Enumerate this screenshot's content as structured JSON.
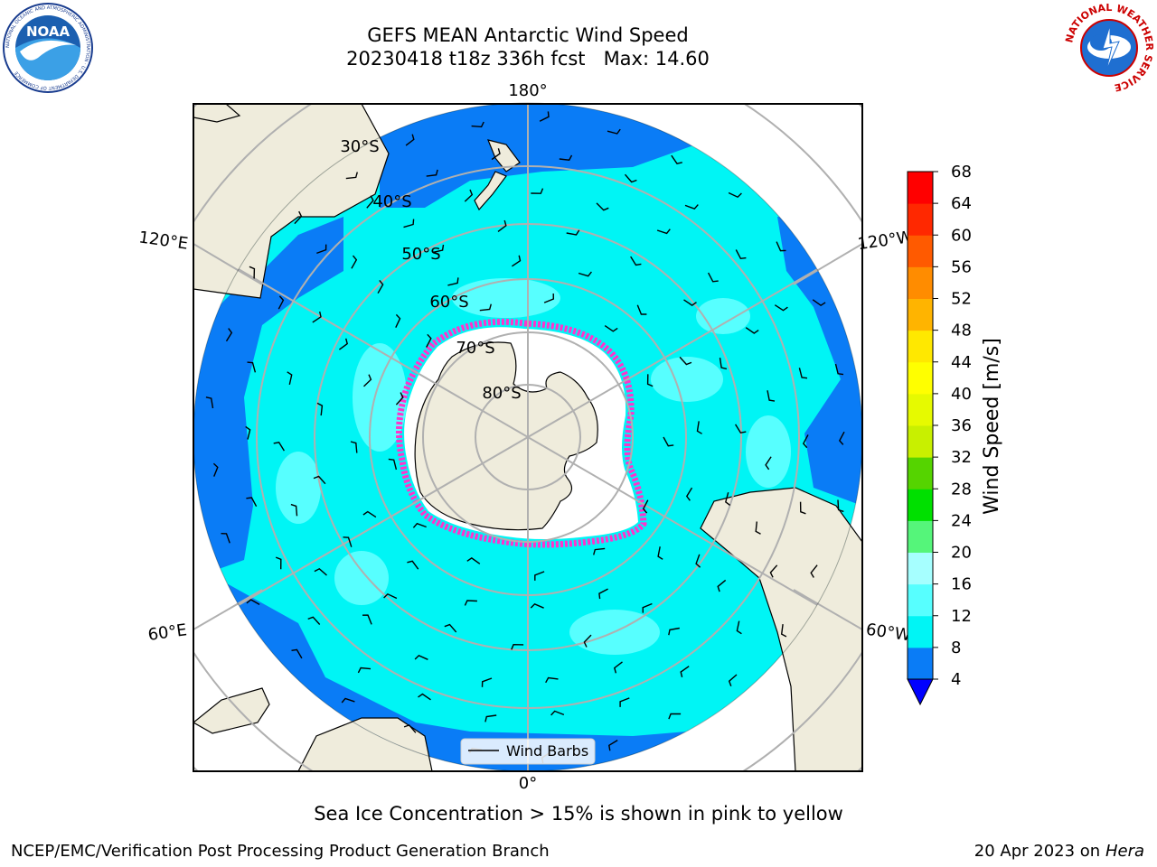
{
  "title": {
    "line1": "GEFS MEAN Antarctic Wind Speed",
    "line2": "20230418 t18z 336h fcst   Max: 14.60"
  },
  "logos": {
    "left": "NOAA",
    "left_ring_text": "NATIONAL OCEANIC AND ATMOSPHERIC ADMINISTRATION · U.S. DEPARTMENT OF COMMERCE",
    "right_ring_text": "NATIONAL WEATHER SERVICE"
  },
  "map": {
    "projection": "south-polar-stereographic",
    "longitude_labels": [
      "180°",
      "120°E",
      "120°W",
      "60°E",
      "60°W",
      "0°"
    ],
    "latitude_labels": [
      "30°S",
      "40°S",
      "50°S",
      "60°S",
      "70°S",
      "80°S"
    ],
    "legend_label": "Wind Barbs",
    "colors": {
      "ocean_fill_4_8": "#0a7cf6",
      "ocean_fill_8_12": "#00f5f5",
      "ocean_fill_12_16": "#57ffff",
      "land": "#efecdc",
      "ice_edge": "#ff33cc",
      "grid": "#b0b0b0"
    }
  },
  "colorbar": {
    "label": "Wind Speed [m/s]",
    "ticks": [
      "68",
      "64",
      "60",
      "56",
      "52",
      "48",
      "44",
      "40",
      "36",
      "32",
      "28",
      "24",
      "20",
      "16",
      "12",
      "8",
      "4"
    ],
    "colors": [
      "#0000ff",
      "#0a7cf6",
      "#00f5f5",
      "#57ffff",
      "#a6ffff",
      "#55f57a",
      "#00e000",
      "#55d400",
      "#c8f000",
      "#e6fa00",
      "#ffff00",
      "#ffe800",
      "#ffb400",
      "#ff8c00",
      "#ff5a00",
      "#ff2800",
      "#ff0000"
    ]
  },
  "subtitle": "Sea Ice Concentration > 15% is shown in pink to yellow",
  "footer": {
    "left": "NCEP/EMC/Verification Post Processing Product Generation Branch",
    "date": "20 Apr 2023 on ",
    "machine": "Hera"
  }
}
